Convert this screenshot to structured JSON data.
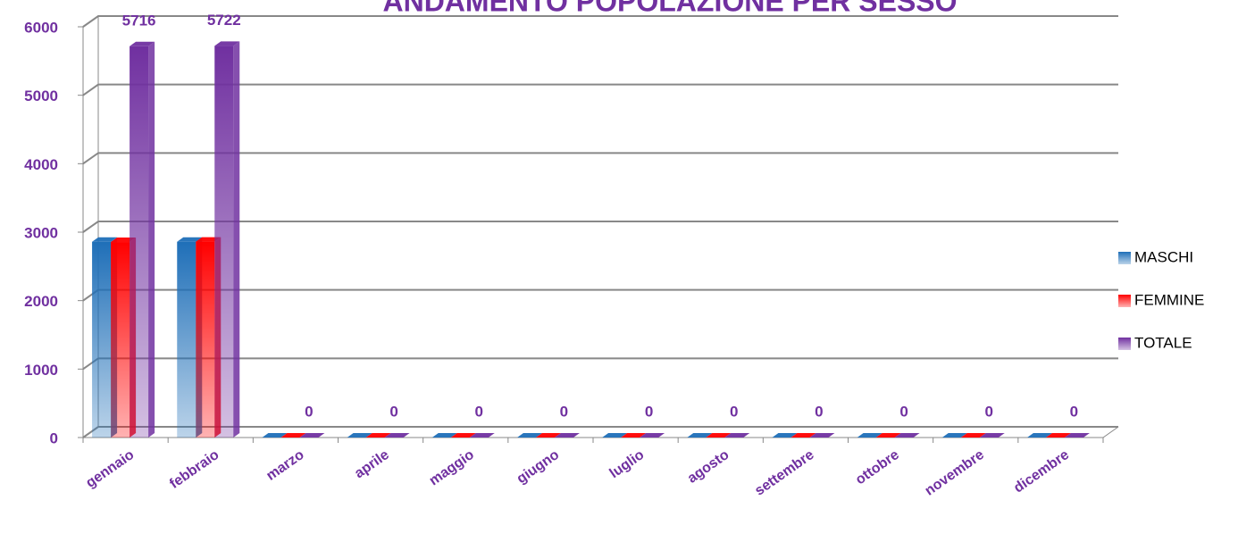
{
  "chart_data": {
    "type": "bar3d",
    "title": "ANDAMENTO POPOLAZIONE PER SESSO",
    "categories": [
      "gennaio",
      "febbraio",
      "marzo",
      "aprile",
      "maggio",
      "giugno",
      "luglio",
      "agosto",
      "settembre",
      "ottobre",
      "novembre",
      "dicembre"
    ],
    "series": [
      {
        "name": "MASCHI",
        "color": "#1f6fb8",
        "values": [
          2860,
          2860,
          0,
          0,
          0,
          0,
          0,
          0,
          0,
          0,
          0,
          0
        ],
        "show_labels": false
      },
      {
        "name": "FEMMINE",
        "color": "#ff0000",
        "values": [
          2856,
          2862,
          0,
          0,
          0,
          0,
          0,
          0,
          0,
          0,
          0,
          0
        ],
        "show_labels": false
      },
      {
        "name": "TOTALE",
        "color": "#7030a0",
        "values": [
          5716,
          5722,
          0,
          0,
          0,
          0,
          0,
          0,
          0,
          0,
          0,
          0
        ],
        "show_labels": true
      }
    ],
    "ylim": [
      0,
      6000
    ],
    "yticks": [
      0,
      1000,
      2000,
      3000,
      4000,
      5000,
      6000
    ],
    "grid": true,
    "legend": "right"
  }
}
